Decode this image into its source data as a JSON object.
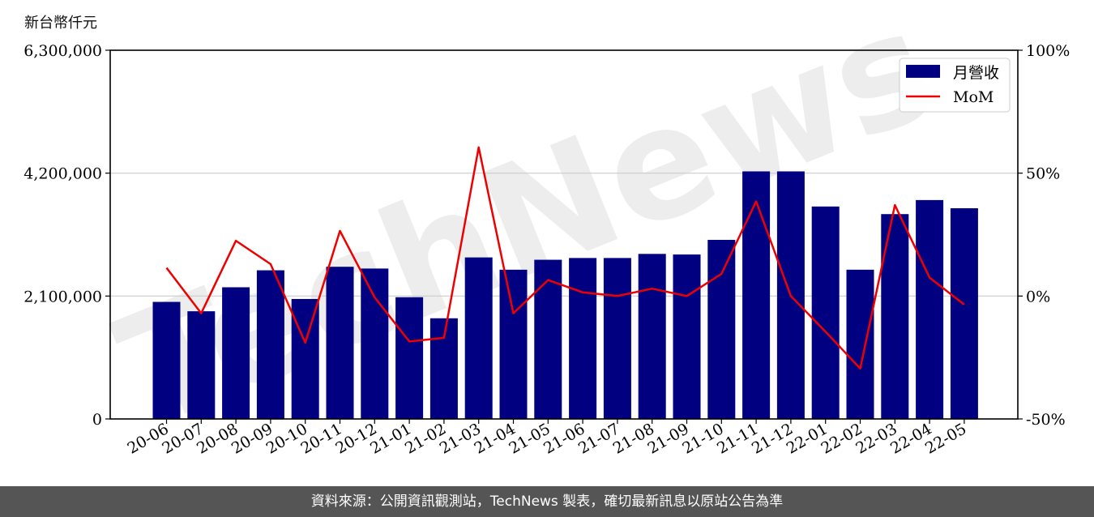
{
  "unit_label": "新台幣仟元",
  "footer_text": "資料來源：公開資訊觀測站，TechNews 製表，確切最新訊息以原站公告為準",
  "watermark": "TechNews",
  "chart_data": {
    "type": "bar",
    "categories": [
      "20-06",
      "20-07",
      "20-08",
      "20-09",
      "20-10",
      "20-11",
      "20-12",
      "21-01",
      "21-02",
      "21-03",
      "21-04",
      "21-05",
      "21-06",
      "21-07",
      "21-08",
      "21-09",
      "21-10",
      "21-11",
      "21-12",
      "22-01",
      "22-02",
      "22-03",
      "22-04",
      "22-05"
    ],
    "series": [
      {
        "name": "月營收",
        "axis": "left",
        "color": "#000080",
        "type": "bar",
        "values": [
          2000000,
          1840000,
          2250000,
          2540000,
          2050000,
          2600000,
          2570000,
          2080000,
          1720000,
          2760000,
          2550000,
          2720000,
          2750000,
          2750000,
          2820000,
          2810000,
          3060000,
          4230000,
          4230000,
          3630000,
          2550000,
          3500000,
          3740000,
          3600000
        ]
      },
      {
        "name": "MoM",
        "axis": "right",
        "color": "#ee0000",
        "type": "line",
        "values": [
          11.5,
          -7,
          22.5,
          13,
          -19,
          26.5,
          -0.5,
          -18.5,
          -17,
          60.5,
          -7,
          6.5,
          1.5,
          0,
          3,
          0,
          9,
          38.5,
          0,
          -14.5,
          -29.5,
          37,
          7.5,
          -3.5
        ]
      }
    ],
    "ylim_left": [
      0,
      6300000
    ],
    "yticks_left": [
      "0",
      "2,100,000",
      "4,200,000",
      "6,300,000"
    ],
    "ylim_right": [
      -50,
      100
    ],
    "yticks_right": [
      "-50%",
      "0%",
      "50%",
      "100%"
    ],
    "grid": "horizontal",
    "legend": "top-right"
  }
}
